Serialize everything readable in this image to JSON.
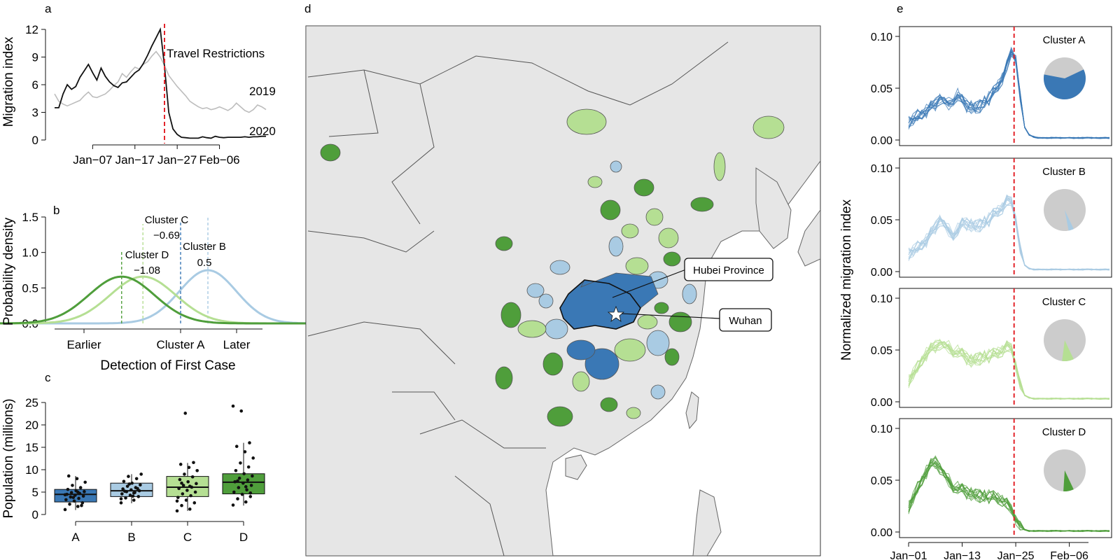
{
  "panel_letters": {
    "a": "a",
    "b": "b",
    "c": "c",
    "d": "d",
    "e": "e"
  },
  "colors": {
    "cluster_a": "#3a78b5",
    "cluster_b": "#a9cbe3",
    "cluster_c": "#b5df93",
    "cluster_d": "#4f9e3b",
    "restriction_line": "#e3242b",
    "series_2019": "#bdbdbd",
    "series_2020": "#111111",
    "map_land": "#e6e6e6",
    "map_border": "#555555",
    "map_sea": "#ffffff"
  },
  "chart_data": [
    {
      "id": "a",
      "type": "line",
      "ylabel": "Migration index",
      "xlabel": "",
      "ylim": [
        0,
        12
      ],
      "yticks": [
        0,
        3,
        6,
        9,
        12
      ],
      "xticks": [
        "Jan−07",
        "Jan−17",
        "Jan−27",
        "Feb−06"
      ],
      "x_start": "Dec−29",
      "annotation": "Travel Restrictions",
      "restriction_x": 25,
      "series": [
        {
          "name": "2019",
          "values": [
            5.0,
            4.2,
            3.9,
            3.7,
            3.9,
            4.1,
            4.3,
            4.8,
            5.2,
            4.7,
            4.6,
            4.8,
            5.0,
            5.4,
            5.9,
            6.3,
            7.2,
            6.8,
            7.4,
            7.9,
            7.7,
            8.2,
            8.5,
            9.1,
            9.6,
            9.0,
            8.1,
            7.0,
            6.4,
            5.8,
            5.3,
            4.8,
            4.2,
            3.9,
            3.6,
            3.4,
            3.5,
            3.3,
            3.4,
            3.6,
            3.4,
            3.2,
            3.5,
            4.0,
            3.6,
            3.2,
            3.0,
            3.3,
            3.8,
            3.6,
            3.3
          ]
        },
        {
          "name": "2020",
          "values": [
            3.5,
            3.5,
            5.0,
            6.0,
            5.5,
            5.8,
            6.8,
            7.5,
            8.2,
            7.3,
            6.5,
            7.8,
            6.9,
            6.3,
            5.9,
            5.7,
            6.2,
            6.3,
            6.8,
            7.3,
            7.6,
            8.3,
            9.2,
            10.2,
            11.1,
            12.0,
            8.0,
            3.0,
            1.2,
            0.6,
            0.3,
            0.25,
            0.2,
            0.2,
            0.2,
            0.35,
            0.25,
            0.2,
            0.4,
            0.3,
            0.25,
            0.3,
            0.3,
            0.3,
            0.3,
            0.35,
            0.3,
            0.35,
            0.35,
            0.4,
            0.4
          ]
        }
      ]
    },
    {
      "id": "b",
      "type": "line",
      "xlabel": "Detection of First Case",
      "ylabel": "Probability density",
      "ylim": [
        0,
        1.5
      ],
      "yticks": [
        "0.0",
        "0.5",
        "1.0",
        "1.5"
      ],
      "xlim": [
        -3.5,
        2.5
      ],
      "xtick_labels": [
        {
          "x": -2.8,
          "label": "Earlier"
        },
        {
          "x": 0,
          "label": "Cluster A"
        },
        {
          "x": 1.6,
          "label": "Later"
        }
      ],
      "series": [
        {
          "name": "Cluster B",
          "mean": 0.5,
          "sd": 0.52,
          "peak": 0.75,
          "label": "0.5"
        },
        {
          "name": "Cluster C",
          "mean": -0.69,
          "sd": 0.6,
          "peak": 0.66,
          "label": "−0.69"
        },
        {
          "name": "Cluster D",
          "mean": -1.08,
          "sd": 0.6,
          "peak": 0.66,
          "label": "−1.08"
        }
      ]
    },
    {
      "id": "c",
      "type": "box",
      "ylabel": "Population (millions)",
      "ylim": [
        0,
        25
      ],
      "yticks": [
        0,
        5,
        10,
        15,
        20,
        25
      ],
      "categories": [
        "A",
        "B",
        "C",
        "D"
      ],
      "boxes": [
        {
          "q1": 2.8,
          "median": 4.5,
          "q3": 5.6,
          "min": 1.0,
          "max": 8.6
        },
        {
          "q1": 4.0,
          "median": 5.3,
          "q3": 7.0,
          "min": 2.5,
          "max": 9.0
        },
        {
          "q1": 4.0,
          "median": 6.1,
          "q3": 8.5,
          "min": 0.8,
          "max": 11.5
        },
        {
          "q1": 4.6,
          "median": 7.2,
          "q3": 9.1,
          "min": 2.0,
          "max": 16.0
        }
      ],
      "points": [
        [
          1.1,
          1.8,
          2.3,
          2.6,
          3.0,
          3.3,
          3.6,
          3.9,
          4.1,
          4.3,
          4.5,
          4.7,
          4.9,
          5.1,
          5.3,
          5.6,
          6.0,
          6.5,
          7.2,
          8.0,
          8.6,
          2.0,
          3.8,
          4.4,
          5.0
        ],
        [
          2.6,
          3.2,
          3.7,
          4.0,
          4.3,
          4.6,
          4.9,
          5.1,
          5.3,
          5.5,
          5.7,
          6.0,
          6.3,
          6.6,
          7.0,
          7.4,
          8.0,
          8.5,
          9.0,
          4.1,
          5.2,
          5.8,
          6.8,
          3.5,
          4.8
        ],
        [
          0.8,
          1.2,
          2.0,
          2.6,
          3.2,
          3.8,
          4.2,
          4.6,
          5.0,
          5.4,
          5.8,
          6.1,
          6.5,
          6.9,
          7.3,
          7.8,
          8.4,
          9.0,
          9.8,
          10.5,
          11.2,
          11.6,
          22.6,
          3.0,
          6.3,
          7.0
        ],
        [
          2.1,
          2.8,
          3.5,
          4.0,
          4.5,
          5.0,
          5.5,
          6.0,
          6.5,
          7.0,
          7.3,
          7.7,
          8.1,
          8.6,
          9.1,
          9.8,
          10.6,
          11.5,
          12.6,
          14.0,
          15.2,
          16.0,
          23.1,
          24.2,
          6.2,
          7.5,
          4.8
        ]
      ]
    },
    {
      "id": "e",
      "type": "line",
      "ylabel": "Normalized migration index",
      "ylim": [
        0,
        0.1
      ],
      "yticks": [
        "0.00",
        "0.05",
        "0.10"
      ],
      "xticks": [
        "Jan−01",
        "Jan−13",
        "Jan−25",
        "Feb−06"
      ],
      "restriction_x": 23,
      "days": 46,
      "panels": [
        {
          "name": "Cluster A",
          "share": 0.6,
          "profile": [
            0.017,
            0.02,
            0.023,
            0.025,
            0.028,
            0.031,
            0.035,
            0.04,
            0.038,
            0.035,
            0.04,
            0.043,
            0.037,
            0.033,
            0.032,
            0.031,
            0.033,
            0.036,
            0.04,
            0.045,
            0.052,
            0.06,
            0.073,
            0.085,
            0.078,
            0.04,
            0.012,
            0.005,
            0.003,
            0.002,
            0.002,
            0.002,
            0.002,
            0.002,
            0.002,
            0.002,
            0.002,
            0.002,
            0.002,
            0.002,
            0.002,
            0.002,
            0.002,
            0.002,
            0.002,
            0.002
          ]
        },
        {
          "name": "Cluster B",
          "share": 0.04,
          "profile": [
            0.017,
            0.02,
            0.023,
            0.026,
            0.03,
            0.036,
            0.043,
            0.05,
            0.046,
            0.04,
            0.037,
            0.04,
            0.045,
            0.046,
            0.045,
            0.044,
            0.045,
            0.047,
            0.05,
            0.054,
            0.058,
            0.062,
            0.07,
            0.068,
            0.05,
            0.02,
            0.006,
            0.003,
            0.002,
            0.002,
            0.002,
            0.002,
            0.002,
            0.002,
            0.002,
            0.002,
            0.002,
            0.002,
            0.002,
            0.002,
            0.002,
            0.002,
            0.002,
            0.002,
            0.002,
            0.002
          ]
        },
        {
          "name": "Cluster C",
          "share": 0.09,
          "profile": [
            0.02,
            0.027,
            0.033,
            0.04,
            0.046,
            0.05,
            0.054,
            0.056,
            0.055,
            0.053,
            0.05,
            0.048,
            0.045,
            0.042,
            0.04,
            0.041,
            0.042,
            0.043,
            0.044,
            0.045,
            0.047,
            0.05,
            0.055,
            0.052,
            0.035,
            0.015,
            0.006,
            0.004,
            0.003,
            0.003,
            0.003,
            0.003,
            0.003,
            0.003,
            0.003,
            0.003,
            0.003,
            0.003,
            0.003,
            0.003,
            0.003,
            0.003,
            0.003,
            0.003,
            0.003,
            0.003
          ]
        },
        {
          "name": "Cluster D",
          "share": 0.08,
          "profile": [
            0.024,
            0.033,
            0.042,
            0.05,
            0.058,
            0.064,
            0.068,
            0.062,
            0.056,
            0.05,
            0.045,
            0.042,
            0.04,
            0.038,
            0.037,
            0.036,
            0.035,
            0.034,
            0.034,
            0.033,
            0.032,
            0.031,
            0.029,
            0.022,
            0.012,
            0.004,
            0.002,
            0.001,
            0.001,
            0.001,
            0.001,
            0.001,
            0.001,
            0.001,
            0.001,
            0.001,
            0.001,
            0.001,
            0.001,
            0.001,
            0.001,
            0.001,
            0.001,
            0.001,
            0.001,
            0.001
          ]
        }
      ]
    }
  ],
  "map": {
    "labels": {
      "hubei": "Hubei Province",
      "wuhan": "Wuhan"
    }
  }
}
